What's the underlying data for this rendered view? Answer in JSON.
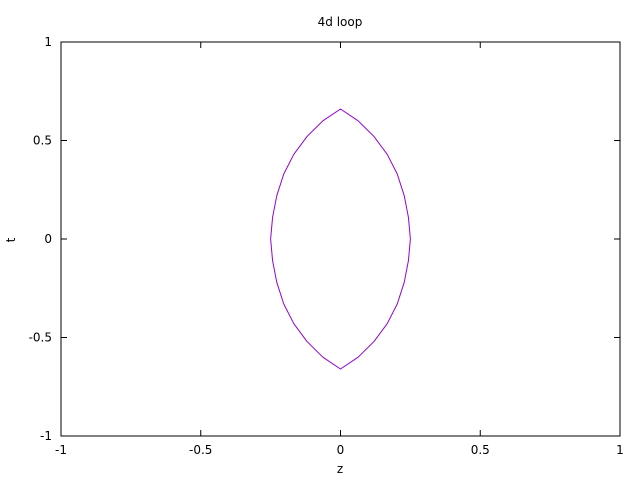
{
  "chart_data": {
    "type": "line",
    "title": "4d loop",
    "xlabel": "z",
    "ylabel": "t",
    "xlim": [
      -1,
      1
    ],
    "ylim": [
      -1,
      1
    ],
    "xticks": [
      -1,
      -0.5,
      0,
      0.5,
      1
    ],
    "xtick_labels": [
      "-1",
      "-0.5",
      "0",
      "0.5",
      "1"
    ],
    "yticks": [
      -1,
      -0.5,
      0,
      0.5,
      1
    ],
    "ytick_labels": [
      "-1",
      "-0.5",
      "0",
      "0.5",
      "1"
    ],
    "grid": false,
    "series": [
      {
        "color": "#9400d3",
        "x": [
          0,
          0.063,
          0.12,
          0.167,
          0.203,
          0.228,
          0.243,
          0.25,
          0.243,
          0.228,
          0.203,
          0.167,
          0.12,
          0.063,
          0,
          -0.063,
          -0.12,
          -0.167,
          -0.203,
          -0.228,
          -0.243,
          -0.25,
          -0.243,
          -0.228,
          -0.203,
          -0.167,
          -0.12,
          -0.063,
          0
        ],
        "y": [
          0.66,
          0.6,
          0.52,
          0.43,
          0.33,
          0.22,
          0.11,
          0,
          -0.11,
          -0.22,
          -0.33,
          -0.43,
          -0.52,
          -0.6,
          -0.66,
          -0.6,
          -0.52,
          -0.43,
          -0.33,
          -0.22,
          -0.11,
          0,
          0.11,
          0.22,
          0.33,
          0.43,
          0.52,
          0.6,
          0.66
        ]
      }
    ]
  }
}
